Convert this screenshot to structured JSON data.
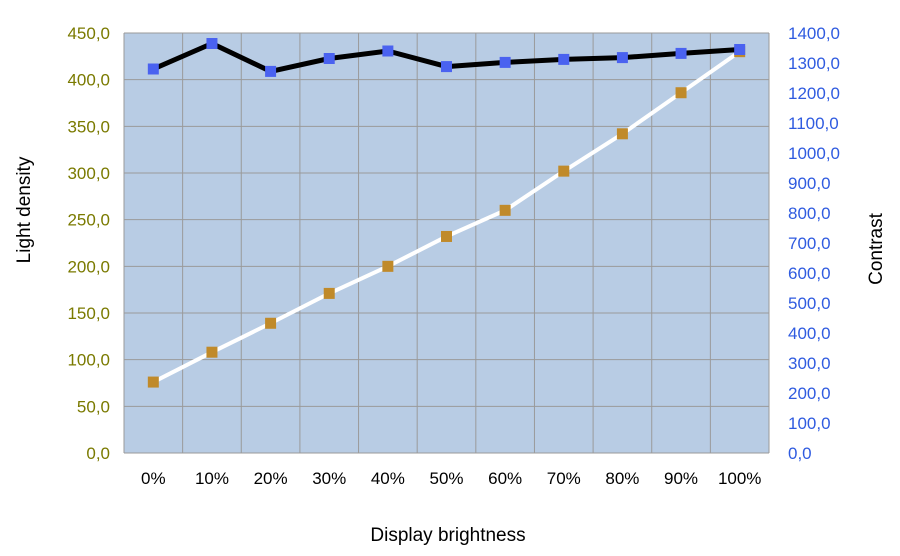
{
  "chart_data": {
    "type": "line",
    "title": "",
    "xlabel": "Display brightness",
    "ylabel_left": "Light density",
    "ylabel_right": "Contrast",
    "categories": [
      "0%",
      "10%",
      "20%",
      "30%",
      "40%",
      "50%",
      "60%",
      "70%",
      "80%",
      "90%",
      "100%"
    ],
    "y_left": {
      "range": [
        0,
        450
      ],
      "ticks": [
        "0,0",
        "50,0",
        "100,0",
        "150,0",
        "200,0",
        "250,0",
        "300,0",
        "350,0",
        "400,0",
        "450,0"
      ]
    },
    "y_right": {
      "range": [
        0,
        1400
      ],
      "ticks": [
        "0,0",
        "100,0",
        "200,0",
        "300,0",
        "400,0",
        "500,0",
        "600,0",
        "700,0",
        "800,0",
        "900,0",
        "1000,0",
        "1100,0",
        "1200,0",
        "1300,0",
        "1400,0"
      ]
    },
    "series": [
      {
        "axis": "left",
        "line_color": "#ffffff",
        "marker_color": "#c08a2a",
        "values": [
          76,
          108,
          139,
          171,
          200,
          232,
          260,
          302,
          342,
          386,
          430
        ]
      },
      {
        "axis": "right",
        "line_color": "#000000",
        "marker_color": "#4a62f0",
        "values": [
          1280,
          1365,
          1272,
          1315,
          1340,
          1288,
          1302,
          1312,
          1318,
          1332,
          1345
        ]
      }
    ],
    "grid": true,
    "legend": "none",
    "plot_background": "#b8cce4",
    "gridline_color": "#9a9a9a"
  }
}
